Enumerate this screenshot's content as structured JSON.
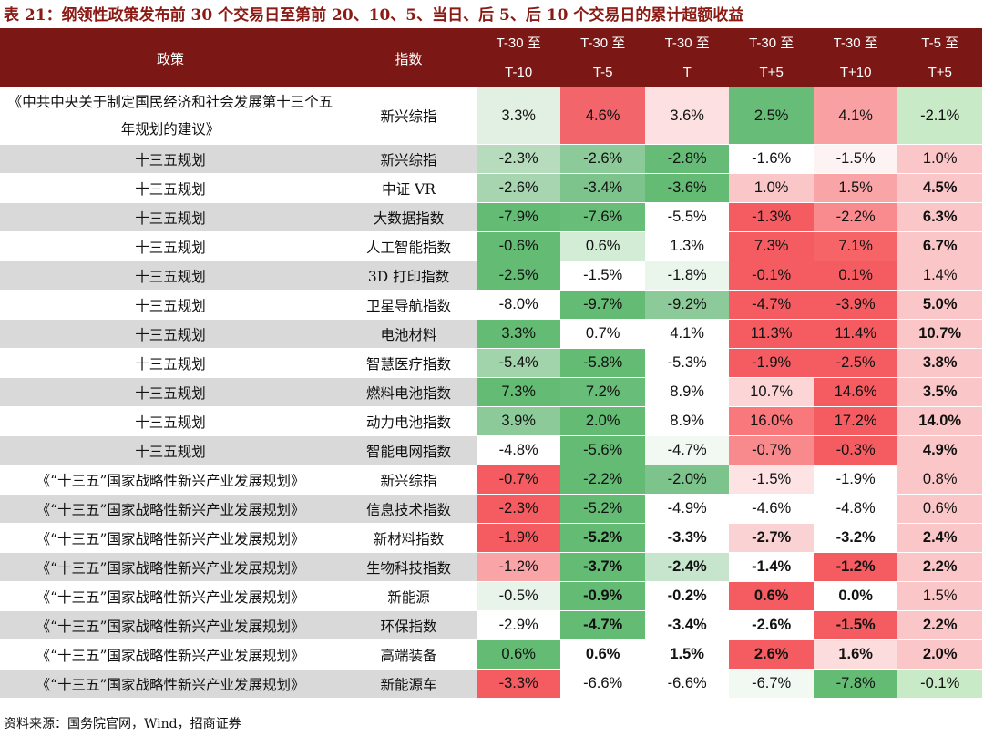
{
  "title": "表 21：纲领性政策发布前 30 个交易日至第前 20、10、5、当日、后 5、后 10 个交易日的累计超额收益",
  "source": "资料来源：国务院官网，Wind，招商证券",
  "header": {
    "policy": "政策",
    "index": "指数",
    "periods": [
      {
        "l1": "T-30 至",
        "l2": "T-10"
      },
      {
        "l1": "T-30 至",
        "l2": "T-5"
      },
      {
        "l1": "T-30 至",
        "l2": "T"
      },
      {
        "l1": "T-30 至",
        "l2": "T+5"
      },
      {
        "l1": "T-30 至",
        "l2": "T+10"
      },
      {
        "l1": "T-5 至",
        "l2": "T+5"
      }
    ]
  },
  "rows": [
    {
      "policy": "《中共中央关于制定国民经济和社会发展第十三个五年规划的建议》",
      "index": "新兴综指",
      "values": [
        "3.3%",
        "4.6%",
        "3.6%",
        "2.5%",
        "4.1%",
        "-2.1%"
      ],
      "bold": [
        false,
        false,
        false,
        false,
        false,
        false
      ],
      "colors": [
        "#e2f0e3",
        "#f2666b",
        "#fde1e2",
        "#67bd78",
        "#f9a0a2",
        "#c9eac6"
      ]
    },
    {
      "policy": "十三五规划",
      "index": "新兴综指",
      "values": [
        "-2.3%",
        "-2.6%",
        "-2.8%",
        "-1.6%",
        "-1.5%",
        "1.0%"
      ],
      "bold": [
        false,
        false,
        false,
        false,
        false,
        false
      ],
      "colors": [
        "#b6dcbd",
        "#8ccb99",
        "#66bc77",
        "#ffffff",
        "#fef3f3",
        "#fbc6c7"
      ]
    },
    {
      "policy": "十三五规划",
      "index": "中证 VR",
      "values": [
        "-2.6%",
        "-3.4%",
        "-3.6%",
        "1.0%",
        "1.5%",
        "4.5%"
      ],
      "bold": [
        false,
        false,
        false,
        false,
        false,
        true
      ],
      "colors": [
        "#a7d5b0",
        "#7dc48c",
        "#63bb74",
        "#fbc6c7",
        "#f9a4a6",
        "#fbc6c7"
      ]
    },
    {
      "policy": "十三五规划",
      "index": "大数据指数",
      "values": [
        "-7.9%",
        "-7.6%",
        "-5.5%",
        "-1.3%",
        "-2.2%",
        "6.3%"
      ],
      "bold": [
        false,
        false,
        false,
        false,
        false,
        true
      ],
      "colors": [
        "#63bb74",
        "#68bd78",
        "#ffffff",
        "#f55c61",
        "#f98b8e",
        "#fbc6c7"
      ]
    },
    {
      "policy": "十三五规划",
      "index": "人工智能指数",
      "values": [
        "-0.6%",
        "0.6%",
        "1.3%",
        "7.3%",
        "7.1%",
        "6.7%"
      ],
      "bold": [
        false,
        false,
        false,
        false,
        false,
        true
      ],
      "colors": [
        "#63bb74",
        "#d3ecd6",
        "#ffffff",
        "#f55c61",
        "#f66468",
        "#fbc6c7"
      ]
    },
    {
      "policy": "十三五规划",
      "index": "3D 打印指数",
      "values": [
        "-2.5%",
        "-1.5%",
        "-1.8%",
        "-0.1%",
        "0.1%",
        "1.4%"
      ],
      "bold": [
        false,
        false,
        false,
        false,
        false,
        false
      ],
      "colors": [
        "#63bb74",
        "#ffffff",
        "#eaf5ec",
        "#f55c61",
        "#f55c61",
        "#fbc6c7"
      ]
    },
    {
      "policy": "十三五规划",
      "index": "卫星导航指数",
      "values": [
        "-8.0%",
        "-9.7%",
        "-9.2%",
        "-4.7%",
        "-3.9%",
        "5.0%"
      ],
      "bold": [
        false,
        false,
        false,
        false,
        false,
        true
      ],
      "colors": [
        "#ffffff",
        "#63bb74",
        "#8ccb99",
        "#f55c61",
        "#f55c61",
        "#fbc6c7"
      ]
    },
    {
      "policy": "十三五规划",
      "index": "电池材料",
      "values": [
        "3.3%",
        "0.7%",
        "4.1%",
        "11.3%",
        "11.4%",
        "10.7%"
      ],
      "bold": [
        false,
        false,
        false,
        false,
        false,
        true
      ],
      "colors": [
        "#63bb74",
        "#ffffff",
        "#ffffff",
        "#f55c61",
        "#f55c61",
        "#fbc6c7"
      ]
    },
    {
      "policy": "十三五规划",
      "index": "智慧医疗指数",
      "values": [
        "-5.4%",
        "-5.8%",
        "-5.3%",
        "-1.9%",
        "-2.5%",
        "3.8%"
      ],
      "bold": [
        false,
        false,
        false,
        false,
        false,
        true
      ],
      "colors": [
        "#a2d4ab",
        "#63bb74",
        "#ffffff",
        "#f55c61",
        "#f55c61",
        "#fbc6c7"
      ]
    },
    {
      "policy": "十三五规划",
      "index": "燃料电池指数",
      "values": [
        "7.3%",
        "7.2%",
        "8.9%",
        "10.7%",
        "14.6%",
        "3.5%"
      ],
      "bold": [
        false,
        false,
        false,
        false,
        false,
        true
      ],
      "colors": [
        "#63bb74",
        "#68bd78",
        "#ffffff",
        "#fcd6d7",
        "#f55c61",
        "#fbc6c7"
      ]
    },
    {
      "policy": "十三五规划",
      "index": "动力电池指数",
      "values": [
        "3.9%",
        "2.0%",
        "8.9%",
        "16.0%",
        "17.2%",
        "14.0%"
      ],
      "bold": [
        false,
        false,
        false,
        false,
        false,
        true
      ],
      "colors": [
        "#8ccb99",
        "#63bb74",
        "#ffffff",
        "#f8787c",
        "#f55c61",
        "#fbc6c7"
      ]
    },
    {
      "policy": "十三五规划",
      "index": "智能电网指数",
      "values": [
        "-4.8%",
        "-5.6%",
        "-4.7%",
        "-0.7%",
        "-0.3%",
        "4.9%"
      ],
      "bold": [
        false,
        false,
        false,
        false,
        false,
        true
      ],
      "colors": [
        "#ffffff",
        "#63bb74",
        "#f1f9f2",
        "#f8898c",
        "#f55c61",
        "#fbc6c7"
      ]
    },
    {
      "policy": "《“十三五”国家战略性新兴产业发展规划》",
      "index": "新兴综指",
      "values": [
        "-0.7%",
        "-2.2%",
        "-2.0%",
        "-1.5%",
        "-1.9%",
        "0.8%"
      ],
      "bold": [
        false,
        false,
        false,
        false,
        false,
        false
      ],
      "colors": [
        "#f55c61",
        "#63bb74",
        "#7dc48c",
        "#fde3e4",
        "#ffffff",
        "#fbc6c7"
      ]
    },
    {
      "policy": "《“十三五”国家战略性新兴产业发展规划》",
      "index": "信息技术指数",
      "values": [
        "-2.3%",
        "-5.2%",
        "-4.9%",
        "-4.6%",
        "-4.8%",
        "0.6%"
      ],
      "bold": [
        false,
        false,
        false,
        false,
        false,
        false
      ],
      "colors": [
        "#f55c61",
        "#63bb74",
        "#ffffff",
        "#ffffff",
        "#ffffff",
        "#fbc6c7"
      ]
    },
    {
      "policy": "《“十三五”国家战略性新兴产业发展规划》",
      "index": "新材料指数",
      "values": [
        "-1.9%",
        "-5.2%",
        "-3.3%",
        "-2.7%",
        "-3.2%",
        "2.4%"
      ],
      "bold": [
        false,
        true,
        true,
        true,
        true,
        true
      ],
      "colors": [
        "#f55c61",
        "#63bb74",
        "#ffffff",
        "#fbd2d3",
        "#ffffff",
        "#fbc6c7"
      ]
    },
    {
      "policy": "《“十三五”国家战略性新兴产业发展规划》",
      "index": "生物科技指数",
      "values": [
        "-1.2%",
        "-3.7%",
        "-2.4%",
        "-1.4%",
        "-1.2%",
        "2.2%"
      ],
      "bold": [
        false,
        true,
        true,
        true,
        true,
        true
      ],
      "colors": [
        "#f9a4a6",
        "#63bb74",
        "#c6e5cc",
        "#ffffff",
        "#f55c61",
        "#fbc6c7"
      ]
    },
    {
      "policy": "《“十三五”国家战略性新兴产业发展规划》",
      "index": "新能源",
      "values": [
        "-0.5%",
        "-0.9%",
        "-0.2%",
        "0.6%",
        "0.0%",
        "1.5%"
      ],
      "bold": [
        false,
        true,
        true,
        true,
        true,
        false
      ],
      "colors": [
        "#e8f4ea",
        "#63bb74",
        "#ffffff",
        "#f55c61",
        "#ffffff",
        "#fbc6c7"
      ]
    },
    {
      "policy": "《“十三五”国家战略性新兴产业发展规划》",
      "index": "环保指数",
      "values": [
        "-2.9%",
        "-4.7%",
        "-3.4%",
        "-2.6%",
        "-1.5%",
        "2.2%"
      ],
      "bold": [
        false,
        true,
        true,
        true,
        true,
        true
      ],
      "colors": [
        "#ffffff",
        "#63bb74",
        "#ffffff",
        "#ffffff",
        "#f55c61",
        "#fbc6c7"
      ]
    },
    {
      "policy": "《“十三五”国家战略性新兴产业发展规划》",
      "index": "高端装备",
      "values": [
        "0.6%",
        "0.6%",
        "1.5%",
        "2.6%",
        "1.6%",
        "2.0%"
      ],
      "bold": [
        false,
        true,
        true,
        true,
        true,
        true
      ],
      "colors": [
        "#63bb74",
        "#ffffff",
        "#ffffff",
        "#f55c61",
        "#fcdcdd",
        "#fbc6c7"
      ]
    },
    {
      "policy": "《“十三五”国家战略性新兴产业发展规划》",
      "index": "新能源车",
      "values": [
        "-3.3%",
        "-6.6%",
        "-6.6%",
        "-6.7%",
        "-7.8%",
        "-0.1%"
      ],
      "bold": [
        false,
        false,
        false,
        false,
        false,
        false
      ],
      "colors": [
        "#f55c61",
        "#ffffff",
        "#ffffff",
        "#f1f9f2",
        "#63bb74",
        "#c9eac6"
      ]
    }
  ]
}
